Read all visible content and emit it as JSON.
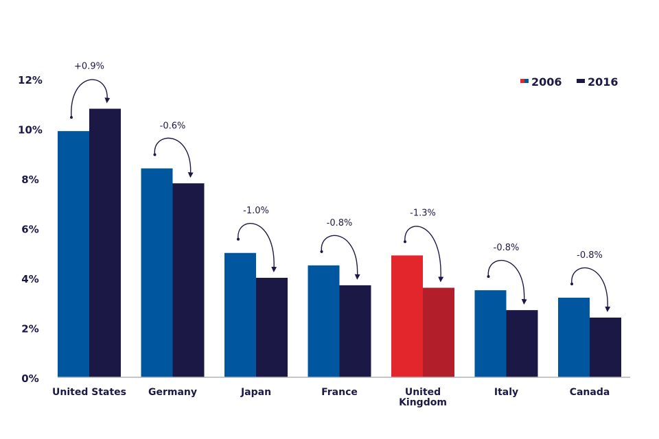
{
  "chart_data": {
    "type": "bar",
    "categories": [
      "United States",
      "Germany",
      "Japan",
      "France",
      "United Kingdom",
      "Italy",
      "Canada"
    ],
    "category_lines": [
      [
        "United States"
      ],
      [
        "Germany"
      ],
      [
        "Japan"
      ],
      [
        "France"
      ],
      [
        "United",
        "Kingdom"
      ],
      [
        "Italy"
      ],
      [
        "Canada"
      ]
    ],
    "series": [
      {
        "name": "2006",
        "values": [
          9.9,
          8.4,
          5.0,
          4.5,
          4.9,
          3.5,
          3.2
        ]
      },
      {
        "name": "2016",
        "values": [
          10.8,
          7.8,
          4.0,
          3.7,
          3.6,
          2.7,
          2.4
        ]
      }
    ],
    "change_labels": [
      "+0.9%",
      "-0.6%",
      "-1.0%",
      "-0.8%",
      "-1.3%",
      "-0.8%",
      "-0.8%"
    ],
    "yticks": [
      "0%",
      "2%",
      "4%",
      "6%",
      "8%",
      "10%",
      "12%"
    ],
    "ylim": [
      0,
      12
    ],
    "legend_position": "top-right",
    "colors": {
      "2006": "#00579f",
      "2016": "#1c1845",
      "highlight_2006": "#e3262b",
      "highlight_2016": "#b21f2b",
      "highlight_category": "United Kingdom",
      "text": "#1c1845",
      "axis": "#b3b3b3"
    }
  }
}
